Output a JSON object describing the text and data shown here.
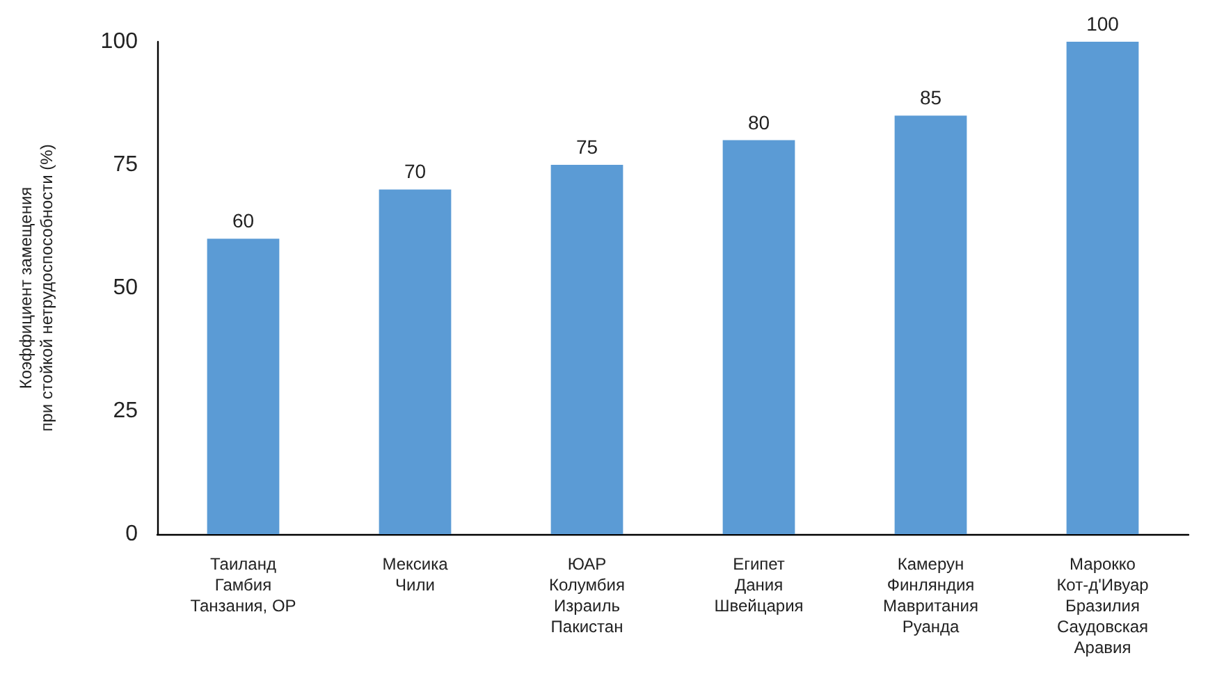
{
  "chart_data": {
    "type": "bar",
    "ylabel": "Коэффициент замещения\nпри стойкой нетрудоспособности (%)",
    "categories": [
      "Таиланд\nГамбия\nТанзания, ОР",
      "Мексика\nЧили",
      "ЮАР\nКолумбия\nИзраиль\nПакистан",
      "Египет\nДания\nШвейцария",
      "Камерун\nФинляндия\nМавритания\nРуанда",
      "Марокко\nКот-д'Ивуар\nБразилия\nСаудовская\nАравия"
    ],
    "values": [
      60,
      70,
      75,
      80,
      85,
      100
    ],
    "color": "#5b9bd5",
    "ylim": [
      0,
      100
    ],
    "yticks": [
      0,
      25,
      50,
      75,
      100
    ],
    "grid": false,
    "data_labels": true
  }
}
